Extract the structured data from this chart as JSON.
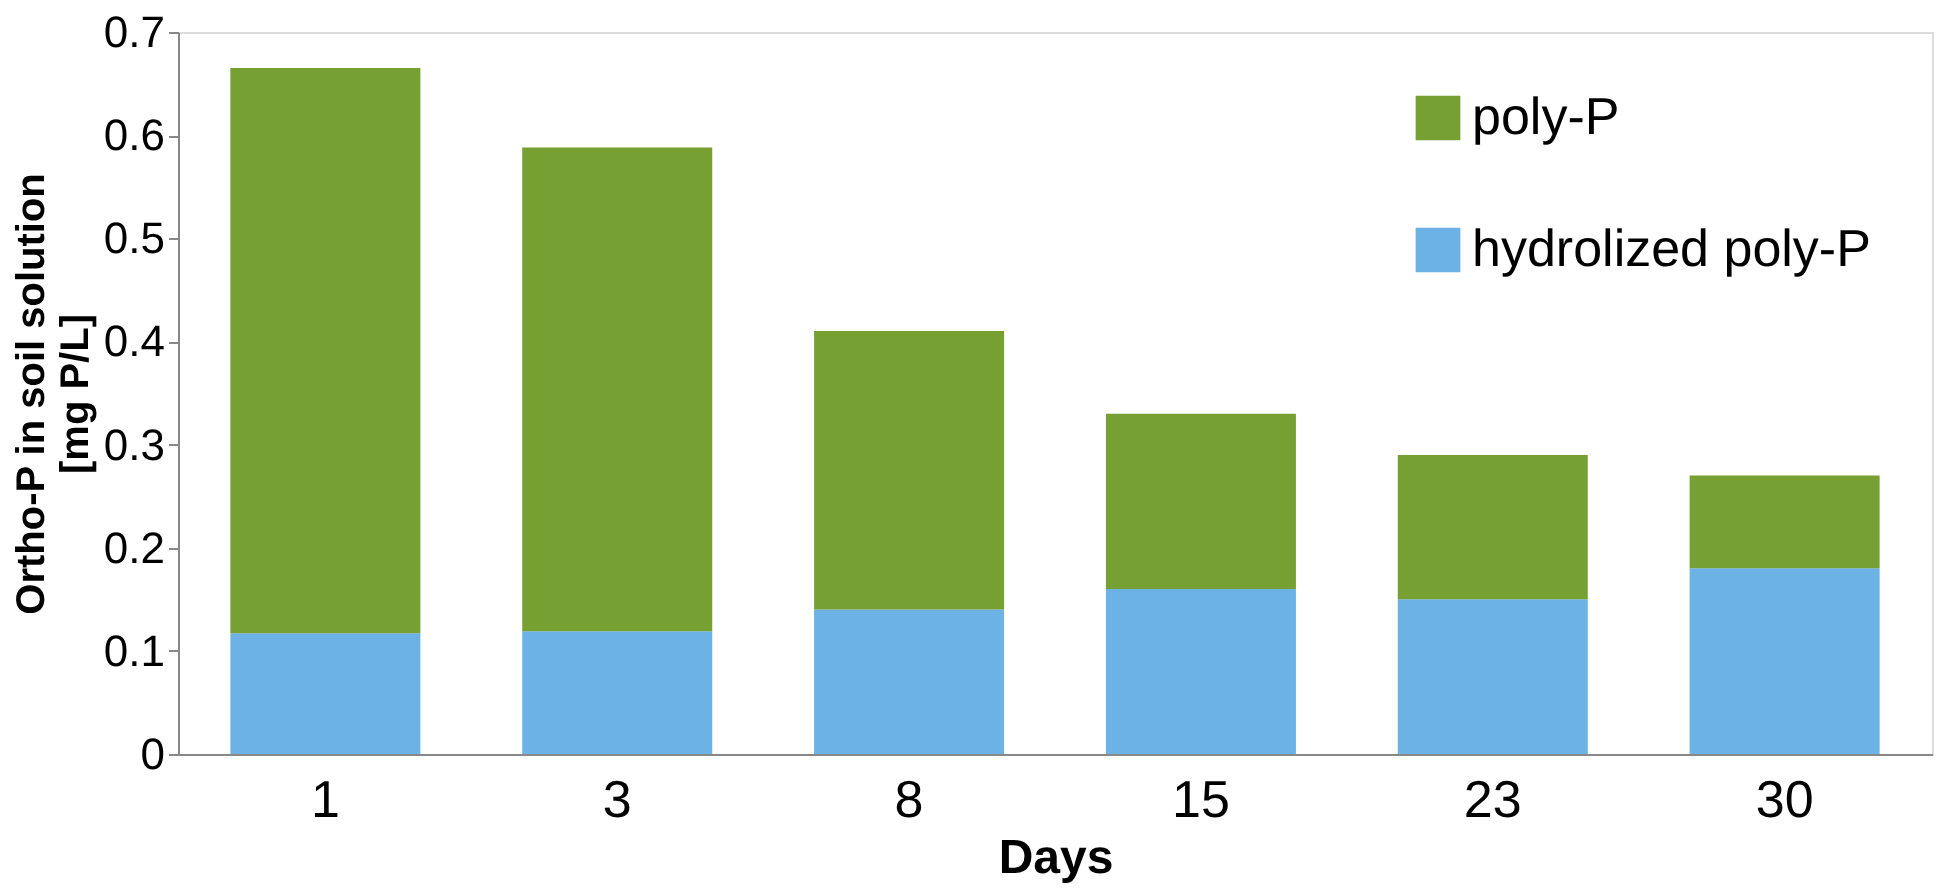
{
  "chart_data": {
    "type": "bar",
    "stacked": true,
    "xlabel": "Days",
    "ylabel": "Ortho-P in soil solution\n[mg P/L]",
    "categories": [
      "1",
      "3",
      "8",
      "15",
      "23",
      "30"
    ],
    "series": [
      {
        "name": "hydrolized poly-P",
        "color": "#6cb2e4",
        "values": [
          0.117,
          0.119,
          0.14,
          0.16,
          0.15,
          0.18
        ]
      },
      {
        "name": "poly-P",
        "color": "#77a033",
        "values": [
          0.548,
          0.469,
          0.27,
          0.17,
          0.14,
          0.09
        ]
      }
    ],
    "ylim": [
      0,
      0.7
    ],
    "yticks": [
      0,
      0.1,
      0.2,
      0.3,
      0.4,
      0.5,
      0.6,
      0.7
    ],
    "grid": false,
    "legend": "top right"
  }
}
